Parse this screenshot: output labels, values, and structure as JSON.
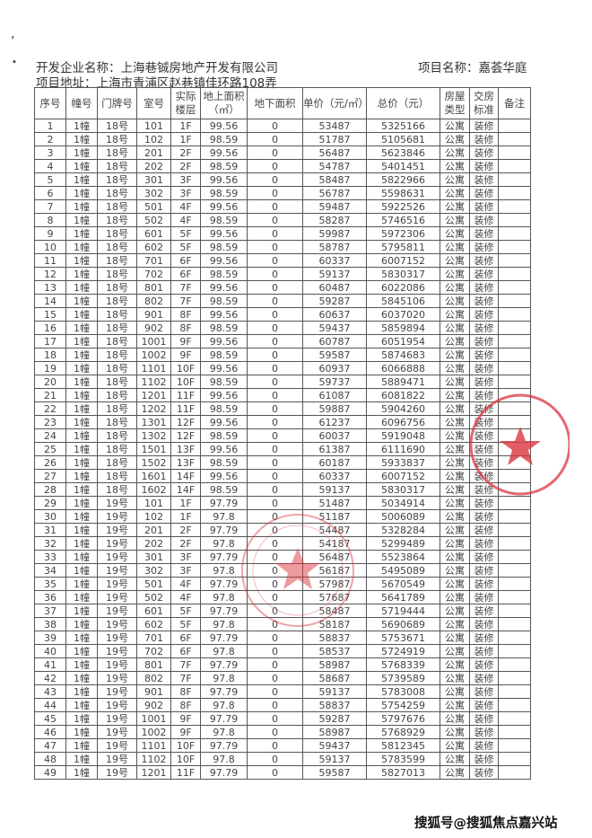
{
  "header": {
    "company": "开发企业名称：上海巷铖房地产开发有限公司",
    "address": "项目地址：上海市青浦区赵巷镇佳环路108弄",
    "project": "项目名称：嘉荟华庭"
  },
  "table": {
    "columns": [
      "序号",
      "幢号",
      "门牌号",
      "室号",
      "实际楼层",
      "地上面积（㎡）",
      "地下面积",
      "单价（元/㎡）",
      "总价（元）",
      "房屋类型",
      "交房标准",
      "备注"
    ],
    "rows": [
      [
        "1",
        "1幢",
        "18号",
        "101",
        "1F",
        "99.56",
        "0",
        "53487",
        "5325166",
        "公寓",
        "装修",
        ""
      ],
      [
        "2",
        "1幢",
        "18号",
        "102",
        "1F",
        "98.59",
        "0",
        "51787",
        "5105681",
        "公寓",
        "装修",
        ""
      ],
      [
        "3",
        "1幢",
        "18号",
        "201",
        "2F",
        "99.56",
        "0",
        "56487",
        "5623846",
        "公寓",
        "装修",
        ""
      ],
      [
        "4",
        "1幢",
        "18号",
        "202",
        "2F",
        "98.59",
        "0",
        "54787",
        "5401451",
        "公寓",
        "装修",
        ""
      ],
      [
        "5",
        "1幢",
        "18号",
        "301",
        "3F",
        "99.56",
        "0",
        "58487",
        "5822966",
        "公寓",
        "装修",
        ""
      ],
      [
        "6",
        "1幢",
        "18号",
        "302",
        "3F",
        "98.59",
        "0",
        "56787",
        "5598631",
        "公寓",
        "装修",
        ""
      ],
      [
        "7",
        "1幢",
        "18号",
        "501",
        "4F",
        "99.56",
        "0",
        "59487",
        "5922526",
        "公寓",
        "装修",
        ""
      ],
      [
        "8",
        "1幢",
        "18号",
        "502",
        "4F",
        "98.59",
        "0",
        "58287",
        "5746516",
        "公寓",
        "装修",
        ""
      ],
      [
        "9",
        "1幢",
        "18号",
        "601",
        "5F",
        "99.56",
        "0",
        "59987",
        "5972306",
        "公寓",
        "装修",
        ""
      ],
      [
        "10",
        "1幢",
        "18号",
        "602",
        "5F",
        "98.59",
        "0",
        "58787",
        "5795811",
        "公寓",
        "装修",
        ""
      ],
      [
        "11",
        "1幢",
        "18号",
        "701",
        "6F",
        "99.56",
        "0",
        "60337",
        "6007152",
        "公寓",
        "装修",
        ""
      ],
      [
        "12",
        "1幢",
        "18号",
        "702",
        "6F",
        "98.59",
        "0",
        "59137",
        "5830317",
        "公寓",
        "装修",
        ""
      ],
      [
        "13",
        "1幢",
        "18号",
        "801",
        "7F",
        "99.56",
        "0",
        "60487",
        "6022086",
        "公寓",
        "装修",
        ""
      ],
      [
        "14",
        "1幢",
        "18号",
        "802",
        "7F",
        "98.59",
        "0",
        "59287",
        "5845106",
        "公寓",
        "装修",
        ""
      ],
      [
        "15",
        "1幢",
        "18号",
        "901",
        "8F",
        "99.56",
        "0",
        "60637",
        "6037020",
        "公寓",
        "装修",
        ""
      ],
      [
        "16",
        "1幢",
        "18号",
        "902",
        "8F",
        "98.59",
        "0",
        "59437",
        "5859894",
        "公寓",
        "装修",
        ""
      ],
      [
        "17",
        "1幢",
        "18号",
        "1001",
        "9F",
        "99.56",
        "0",
        "60787",
        "6051954",
        "公寓",
        "装修",
        ""
      ],
      [
        "18",
        "1幢",
        "18号",
        "1002",
        "9F",
        "98.59",
        "0",
        "59587",
        "5874683",
        "公寓",
        "装修",
        ""
      ],
      [
        "19",
        "1幢",
        "18号",
        "1101",
        "10F",
        "99.56",
        "0",
        "60937",
        "6066888",
        "公寓",
        "装修",
        ""
      ],
      [
        "20",
        "1幢",
        "18号",
        "1102",
        "10F",
        "98.59",
        "0",
        "59737",
        "5889471",
        "公寓",
        "装修",
        ""
      ],
      [
        "21",
        "1幢",
        "18号",
        "1201",
        "11F",
        "99.56",
        "0",
        "61087",
        "6081822",
        "公寓",
        "装修",
        ""
      ],
      [
        "22",
        "1幢",
        "18号",
        "1202",
        "11F",
        "98.59",
        "0",
        "59887",
        "5904260",
        "公寓",
        "装修",
        ""
      ],
      [
        "23",
        "1幢",
        "18号",
        "1301",
        "12F",
        "99.56",
        "0",
        "61237",
        "6096756",
        "公寓",
        "装修",
        ""
      ],
      [
        "24",
        "1幢",
        "18号",
        "1302",
        "12F",
        "98.59",
        "0",
        "60037",
        "5919048",
        "公寓",
        "装修",
        ""
      ],
      [
        "25",
        "1幢",
        "18号",
        "1501",
        "13F",
        "99.56",
        "0",
        "61387",
        "6111690",
        "公寓",
        "装修",
        ""
      ],
      [
        "26",
        "1幢",
        "18号",
        "1502",
        "13F",
        "98.59",
        "0",
        "60187",
        "5933837",
        "公寓",
        "装修",
        ""
      ],
      [
        "27",
        "1幢",
        "18号",
        "1601",
        "14F",
        "99.56",
        "0",
        "60337",
        "6007152",
        "公寓",
        "装修",
        ""
      ],
      [
        "28",
        "1幢",
        "18号",
        "1602",
        "14F",
        "98.59",
        "0",
        "59137",
        "5830317",
        "公寓",
        "装修",
        ""
      ],
      [
        "29",
        "1幢",
        "19号",
        "101",
        "1F",
        "97.79",
        "0",
        "51487",
        "5034914",
        "公寓",
        "装修",
        ""
      ],
      [
        "30",
        "1幢",
        "19号",
        "102",
        "1F",
        "97.8",
        "0",
        "51187",
        "5006089",
        "公寓",
        "装修",
        ""
      ],
      [
        "31",
        "1幢",
        "19号",
        "201",
        "2F",
        "97.79",
        "0",
        "54487",
        "5328284",
        "公寓",
        "装修",
        ""
      ],
      [
        "32",
        "1幢",
        "19号",
        "202",
        "2F",
        "97.8",
        "0",
        "54187",
        "5299489",
        "公寓",
        "装修",
        ""
      ],
      [
        "33",
        "1幢",
        "19号",
        "301",
        "3F",
        "97.79",
        "0",
        "56487",
        "5523864",
        "公寓",
        "装修",
        ""
      ],
      [
        "34",
        "1幢",
        "19号",
        "302",
        "3F",
        "97.8",
        "0",
        "56187",
        "5495089",
        "公寓",
        "装修",
        ""
      ],
      [
        "35",
        "1幢",
        "19号",
        "501",
        "4F",
        "97.79",
        "0",
        "57987",
        "5670549",
        "公寓",
        "装修",
        ""
      ],
      [
        "36",
        "1幢",
        "19号",
        "502",
        "4F",
        "97.8",
        "0",
        "57687",
        "5641789",
        "公寓",
        "装修",
        ""
      ],
      [
        "37",
        "1幢",
        "19号",
        "601",
        "5F",
        "97.79",
        "0",
        "58487",
        "5719444",
        "公寓",
        "装修",
        ""
      ],
      [
        "38",
        "1幢",
        "19号",
        "602",
        "5F",
        "97.8",
        "0",
        "58187",
        "5690689",
        "公寓",
        "装修",
        ""
      ],
      [
        "39",
        "1幢",
        "19号",
        "701",
        "6F",
        "97.79",
        "0",
        "58837",
        "5753671",
        "公寓",
        "装修",
        ""
      ],
      [
        "40",
        "1幢",
        "19号",
        "702",
        "6F",
        "97.8",
        "0",
        "58537",
        "5724919",
        "公寓",
        "装修",
        ""
      ],
      [
        "41",
        "1幢",
        "19号",
        "801",
        "7F",
        "97.79",
        "0",
        "58987",
        "5768339",
        "公寓",
        "装修",
        ""
      ],
      [
        "42",
        "1幢",
        "19号",
        "802",
        "7F",
        "97.8",
        "0",
        "58687",
        "5739589",
        "公寓",
        "装修",
        ""
      ],
      [
        "43",
        "1幢",
        "19号",
        "901",
        "8F",
        "97.79",
        "0",
        "59137",
        "5783008",
        "公寓",
        "装修",
        ""
      ],
      [
        "44",
        "1幢",
        "19号",
        "902",
        "8F",
        "97.8",
        "0",
        "58837",
        "5754259",
        "公寓",
        "装修",
        ""
      ],
      [
        "45",
        "1幢",
        "19号",
        "1001",
        "9F",
        "97.79",
        "0",
        "59287",
        "5797676",
        "公寓",
        "装修",
        ""
      ],
      [
        "46",
        "1幢",
        "19号",
        "1002",
        "9F",
        "97.8",
        "0",
        "58987",
        "5768929",
        "公寓",
        "装修",
        ""
      ],
      [
        "47",
        "1幢",
        "19号",
        "1101",
        "10F",
        "97.79",
        "0",
        "59437",
        "5812345",
        "公寓",
        "装修",
        ""
      ],
      [
        "48",
        "1幢",
        "19号",
        "1102",
        "10F",
        "97.8",
        "0",
        "59137",
        "5783599",
        "公寓",
        "装修",
        ""
      ],
      [
        "49",
        "1幢",
        "19号",
        "1201",
        "11F",
        "97.79",
        "0",
        "59587",
        "5827013",
        "公寓",
        "装修",
        ""
      ]
    ]
  },
  "watermark": "搜狐号@搜狐焦点嘉兴站",
  "colors": {
    "stamp": "#d9363e",
    "text": "#333333"
  }
}
